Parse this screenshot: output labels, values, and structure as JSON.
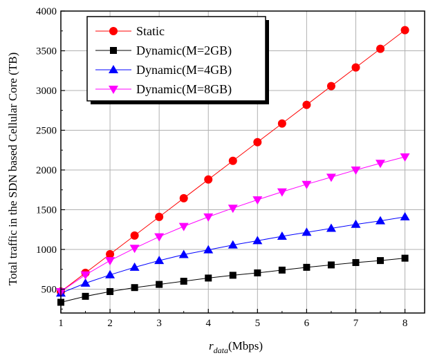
{
  "chart_data": {
    "type": "line",
    "xlabel_main": "r",
    "xlabel_sub": "data",
    "xlabel_unit": "(Mbps)",
    "ylabel": "Total traffic in the SDN based Cellular Core (TB)",
    "xlim": [
      1,
      8.4
    ],
    "ylim": [
      200,
      4000
    ],
    "xticks": [
      1,
      2,
      3,
      4,
      5,
      6,
      7,
      8
    ],
    "yticks": [
      500,
      1000,
      1500,
      2000,
      2500,
      3000,
      3500,
      4000
    ],
    "grid": true,
    "legend_position": "top-left",
    "x": [
      1,
      1.5,
      2,
      2.5,
      3,
      3.5,
      4,
      4.5,
      5,
      5.5,
      6,
      6.5,
      7,
      7.5,
      8
    ],
    "series": [
      {
        "name": "Static",
        "color": "#ff0000",
        "marker": "circle",
        "values": [
          470,
          705,
          940,
          1175,
          1410,
          1645,
          1880,
          2115,
          2350,
          2585,
          2820,
          3055,
          3290,
          3525,
          3760
        ]
      },
      {
        "name": "Dynamic(M=2GB)",
        "color": "#000000",
        "marker": "square",
        "values": [
          335,
          410,
          470,
          520,
          560,
          600,
          640,
          675,
          705,
          740,
          775,
          805,
          835,
          860,
          890
        ]
      },
      {
        "name": "Dynamic(M=4GB)",
        "color": "#0000ff",
        "marker": "triangle-up",
        "values": [
          450,
          575,
          680,
          775,
          860,
          935,
          995,
          1055,
          1110,
          1165,
          1215,
          1265,
          1315,
          1360,
          1410
        ]
      },
      {
        "name": "Dynamic(M=8GB)",
        "color": "#ff00ff",
        "marker": "triangle-down",
        "values": [
          470,
          680,
          860,
          1015,
          1160,
          1290,
          1410,
          1520,
          1625,
          1725,
          1820,
          1910,
          2000,
          2085,
          2165
        ]
      }
    ]
  }
}
